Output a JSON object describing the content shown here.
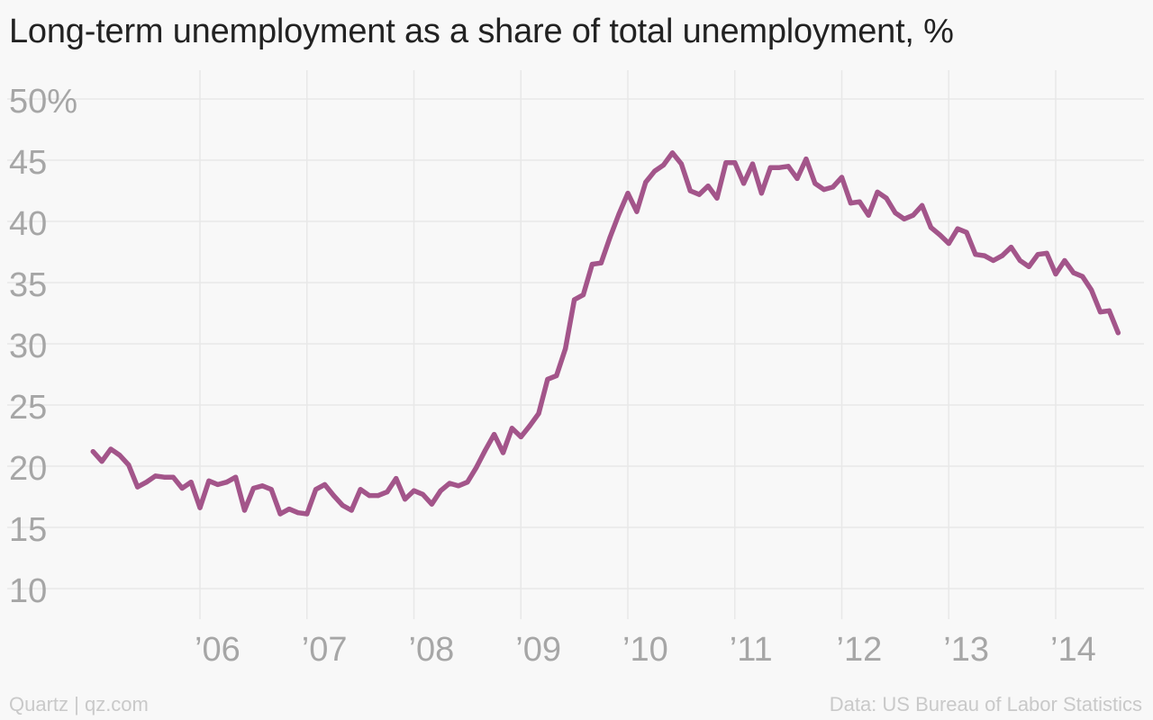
{
  "title": "Long-term unemployment as a share of total unemployment, %",
  "footer": {
    "source_left": "Quartz | qz.com",
    "source_right": "Data: US Bureau of Labor Statistics"
  },
  "colors": {
    "line": "#a3558a",
    "grid": "#e8e8e8",
    "tick_text": "#a6a6a6"
  },
  "chart_data": {
    "type": "line",
    "title": "Long-term unemployment as a share of total unemployment, %",
    "xlabel": "",
    "ylabel": "",
    "ylim": [
      10,
      50
    ],
    "xlim": [
      "2005-01",
      "2014-08"
    ],
    "yticks": [
      10,
      15,
      20,
      25,
      30,
      35,
      40,
      45,
      50
    ],
    "ytick_labels": [
      "10",
      "15",
      "20",
      "25",
      "30",
      "35",
      "40",
      "45",
      "50%"
    ],
    "xticks": [
      "2006-01",
      "2007-01",
      "2008-01",
      "2009-01",
      "2010-01",
      "2011-01",
      "2012-01",
      "2013-01",
      "2014-01"
    ],
    "xtick_labels": [
      "’06",
      "’07",
      "’08",
      "’09",
      "’10",
      "’11",
      "’12",
      "’13",
      "’14"
    ],
    "grid": true,
    "x": [
      "2005-01",
      "2005-02",
      "2005-03",
      "2005-04",
      "2005-05",
      "2005-06",
      "2005-07",
      "2005-08",
      "2005-09",
      "2005-10",
      "2005-11",
      "2005-12",
      "2006-01",
      "2006-02",
      "2006-03",
      "2006-04",
      "2006-05",
      "2006-06",
      "2006-07",
      "2006-08",
      "2006-09",
      "2006-10",
      "2006-11",
      "2006-12",
      "2007-01",
      "2007-02",
      "2007-03",
      "2007-04",
      "2007-05",
      "2007-06",
      "2007-07",
      "2007-08",
      "2007-09",
      "2007-10",
      "2007-11",
      "2007-12",
      "2008-01",
      "2008-02",
      "2008-03",
      "2008-04",
      "2008-05",
      "2008-06",
      "2008-07",
      "2008-08",
      "2008-09",
      "2008-10",
      "2008-11",
      "2008-12",
      "2009-01",
      "2009-02",
      "2009-03",
      "2009-04",
      "2009-05",
      "2009-06",
      "2009-07",
      "2009-08",
      "2009-09",
      "2009-10",
      "2009-11",
      "2009-12",
      "2010-01",
      "2010-02",
      "2010-03",
      "2010-04",
      "2010-05",
      "2010-06",
      "2010-07",
      "2010-08",
      "2010-09",
      "2010-10",
      "2010-11",
      "2010-12",
      "2011-01",
      "2011-02",
      "2011-03",
      "2011-04",
      "2011-05",
      "2011-06",
      "2011-07",
      "2011-08",
      "2011-09",
      "2011-10",
      "2011-11",
      "2011-12",
      "2012-01",
      "2012-02",
      "2012-03",
      "2012-04",
      "2012-05",
      "2012-06",
      "2012-07",
      "2012-08",
      "2012-09",
      "2012-10",
      "2012-11",
      "2012-12",
      "2013-01",
      "2013-02",
      "2013-03",
      "2013-04",
      "2013-05",
      "2013-06",
      "2013-07",
      "2013-08",
      "2013-09",
      "2013-10",
      "2013-11",
      "2013-12",
      "2014-01",
      "2014-02",
      "2014-03",
      "2014-04",
      "2014-05",
      "2014-06",
      "2014-07",
      "2014-08"
    ],
    "series": [
      {
        "values": [
          21.2,
          20.4,
          21.4,
          20.9,
          20.1,
          18.3,
          18.7,
          19.2,
          19.1,
          19.1,
          18.2,
          18.7,
          16.6,
          18.8,
          18.5,
          18.7,
          19.1,
          16.4,
          18.2,
          18.4,
          18.1,
          16.1,
          16.5,
          16.2,
          16.1,
          18.1,
          18.5,
          17.6,
          16.8,
          16.4,
          18.1,
          17.6,
          17.6,
          17.9,
          19.0,
          17.3,
          18.0,
          17.7,
          16.9,
          18.0,
          18.6,
          18.4,
          18.7,
          19.9,
          21.3,
          22.6,
          21.1,
          23.1,
          22.4,
          23.3,
          24.3,
          27.1,
          27.4,
          29.6,
          33.6,
          34.0,
          36.5,
          36.6,
          38.7,
          40.6,
          42.3,
          40.8,
          43.2,
          44.1,
          44.6,
          45.6,
          44.7,
          42.5,
          42.2,
          42.9,
          41.9,
          44.8,
          44.8,
          43.1,
          44.7,
          42.3,
          44.4,
          44.4,
          44.5,
          43.5,
          45.1,
          43.1,
          42.6,
          42.8,
          43.6,
          41.5,
          41.6,
          40.5,
          42.4,
          41.9,
          40.7,
          40.2,
          40.5,
          41.3,
          39.5,
          38.9,
          38.2,
          39.4,
          39.1,
          37.3,
          37.2,
          36.8,
          37.2,
          37.9,
          36.8,
          36.3,
          37.3,
          37.4,
          35.7,
          36.8,
          35.8,
          35.5,
          34.4,
          32.6,
          32.7,
          30.9
        ]
      }
    ]
  }
}
